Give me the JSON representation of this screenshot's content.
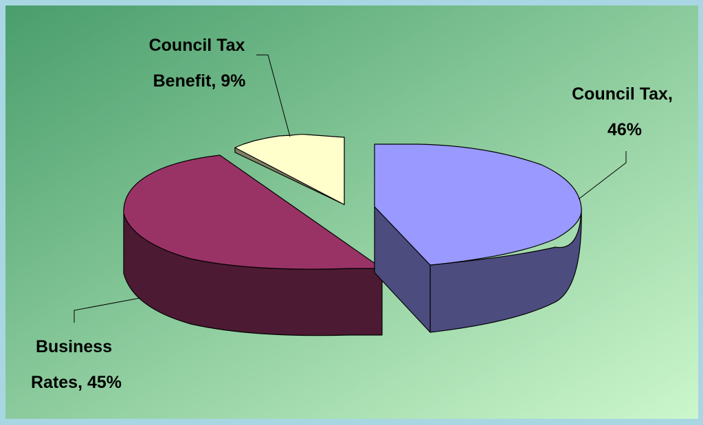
{
  "chart_data": {
    "type": "pie",
    "style": "3d-exploded",
    "title": "",
    "legend": "none",
    "slices": [
      {
        "label_lines": [
          "Council Tax,",
          "46%"
        ],
        "category": "Council Tax",
        "value": 46,
        "color": "#9999ff",
        "side_color": "#4c4c7f"
      },
      {
        "label_lines": [
          "Business",
          "Rates, 45%"
        ],
        "category": "Business Rates",
        "value": 45,
        "color": "#993366",
        "side_color": "#4d1a33"
      },
      {
        "label_lines": [
          "Council Tax",
          "Benefit, 9%"
        ],
        "category": "Council Tax Benefit",
        "value": 9,
        "color": "#ffffcc",
        "side_color": "#808066"
      }
    ]
  },
  "colors": {
    "frame": "#a9d6e3",
    "background_start": "#4a9e6c",
    "background_end": "#ccf7cc"
  }
}
